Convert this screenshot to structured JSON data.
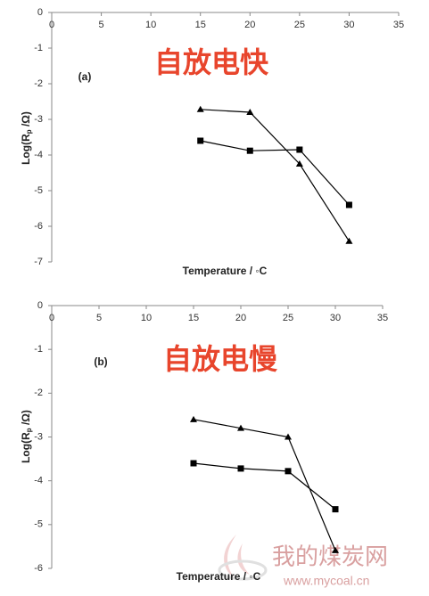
{
  "chart_data": [
    {
      "type": "line",
      "label": "(a)",
      "annotation": "自放电快",
      "xlabel": "Temperature / ◦C",
      "ylabel": "Log(R",
      "ylabel_sub": "p",
      "ylabel_end": " /Ω)",
      "xlim": [
        0,
        35
      ],
      "xticks": [
        0,
        5,
        10,
        15,
        20,
        25,
        30,
        35
      ],
      "ylim": [
        -7,
        0
      ],
      "yticks": [
        -7,
        -6,
        -5,
        -4,
        -3,
        -2,
        -1,
        0
      ],
      "series": [
        {
          "color": "#000000",
          "marker": "triangle",
          "x": [
            15,
            20,
            25,
            30
          ],
          "values": [
            -2.72,
            -2.8,
            -4.25,
            -6.42
          ]
        },
        {
          "color": "#000000",
          "marker": "square",
          "x": [
            15,
            20,
            25,
            30
          ],
          "values": [
            -3.6,
            -3.88,
            -3.85,
            -5.4
          ]
        }
      ]
    },
    {
      "type": "line",
      "label": "(b)",
      "annotation": "自放电慢",
      "xlabel": "Temperature / ◦C",
      "ylabel": "Log(R",
      "ylabel_sub": "p",
      "ylabel_end": " /Ω)",
      "xlim": [
        0,
        35
      ],
      "xticks": [
        0,
        5,
        10,
        15,
        20,
        25,
        30,
        35
      ],
      "ylim": [
        -6,
        0
      ],
      "yticks": [
        -6,
        -5,
        -4,
        -3,
        -2,
        -1,
        0
      ],
      "series": [
        {
          "color": "#000000",
          "marker": "triangle",
          "x": [
            15,
            20,
            25,
            30
          ],
          "values": [
            -2.6,
            -2.8,
            -3.0,
            -5.59
          ]
        },
        {
          "color": "#000000",
          "marker": "square",
          "x": [
            15,
            20,
            25,
            30
          ],
          "values": [
            -3.6,
            -3.72,
            -3.78,
            -4.65
          ]
        }
      ]
    }
  ],
  "watermark": {
    "name": "我的煤炭网",
    "url": "www.mycoal.cn"
  }
}
